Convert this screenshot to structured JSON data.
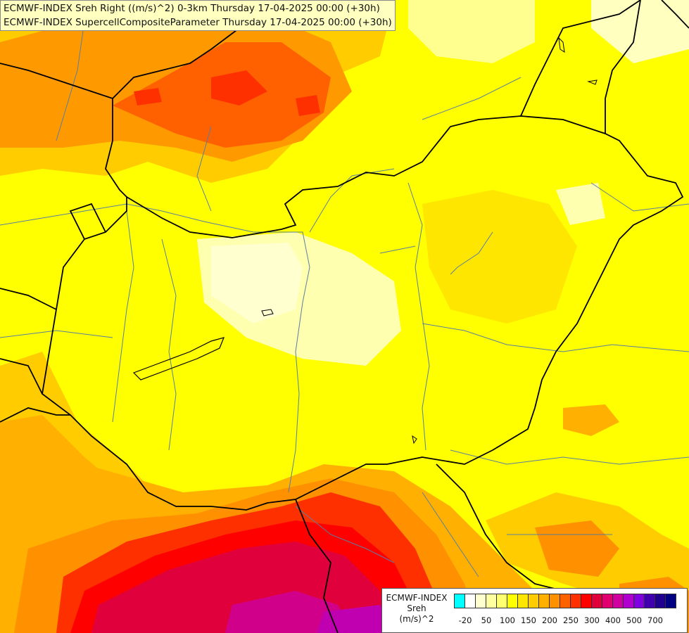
{
  "title": {
    "line1": "ECMWF-INDEX Sreh Right ((m/s)^2) 0-3km Thursday 17-04-2025 00:00 (+30h)",
    "line2": "ECMWF-INDEX SupercellCompositeParameter Thursday 17-04-2025 00:00 (+30h)"
  },
  "legend": {
    "line1": "ECMWF-INDEX",
    "line2": "Sreh",
    "line3": "(m/s)^2",
    "colors": [
      "#00ffff",
      "#ffffff",
      "#ffffd0",
      "#ffffa0",
      "#ffff70",
      "#ffff00",
      "#ffe600",
      "#ffcc00",
      "#ffb000",
      "#ff9000",
      "#ff6000",
      "#ff3000",
      "#ff0000",
      "#e0003c",
      "#e00070",
      "#d000a0",
      "#b000d0",
      "#8000e0",
      "#4000b0",
      "#200090",
      "#000080"
    ],
    "ticks": [
      {
        "label": "-20",
        "i": 1
      },
      {
        "label": "50",
        "i": 3
      },
      {
        "label": "100",
        "i": 5
      },
      {
        "label": "150",
        "i": 7
      },
      {
        "label": "200",
        "i": 9
      },
      {
        "label": "250",
        "i": 11
      },
      {
        "label": "300",
        "i": 13
      },
      {
        "label": "400",
        "i": 15
      },
      {
        "label": "500",
        "i": 17
      },
      {
        "label": "700",
        "i": 19
      }
    ]
  }
}
